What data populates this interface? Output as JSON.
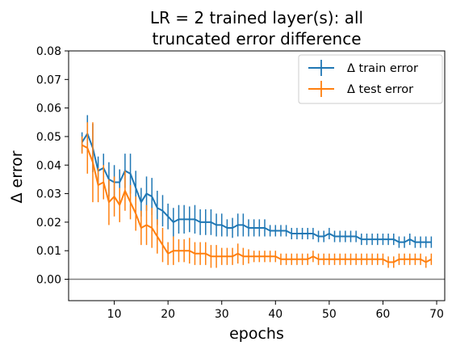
{
  "chart_data": {
    "type": "line",
    "title_lines": [
      "LR = 2 trained layer(s): all",
      "truncated error difference"
    ],
    "xlabel": "epochs",
    "ylabel": "Δ error",
    "xlim": [
      1.5,
      71.5
    ],
    "ylim": [
      -0.0075,
      0.08
    ],
    "xticks": [
      10,
      20,
      30,
      40,
      50,
      60,
      70
    ],
    "yticks": [
      0.0,
      0.01,
      0.02,
      0.03,
      0.04,
      0.05,
      0.06,
      0.07,
      0.08
    ],
    "ytick_labels": [
      "0.00",
      "0.01",
      "0.02",
      "0.03",
      "0.04",
      "0.05",
      "0.06",
      "0.07",
      "0.08"
    ],
    "reference_line": {
      "y": 0.0,
      "color": "#808080"
    },
    "legend_position": "top-right",
    "x": [
      4,
      5,
      6,
      7,
      8,
      9,
      10,
      11,
      12,
      13,
      14,
      15,
      16,
      17,
      18,
      19,
      20,
      21,
      22,
      23,
      24,
      25,
      26,
      27,
      28,
      29,
      30,
      31,
      32,
      33,
      34,
      35,
      36,
      37,
      38,
      39,
      40,
      41,
      42,
      43,
      44,
      45,
      46,
      47,
      48,
      49,
      50,
      51,
      52,
      53,
      54,
      55,
      56,
      57,
      58,
      59,
      60,
      61,
      62,
      63,
      64,
      65,
      66,
      67,
      68,
      69
    ],
    "series": [
      {
        "name": "Δ train error",
        "color": "#1f77b4",
        "values": [
          0.048,
          0.051,
          0.046,
          0.038,
          0.039,
          0.035,
          0.034,
          0.034,
          0.038,
          0.037,
          0.032,
          0.027,
          0.03,
          0.029,
          0.025,
          0.024,
          0.022,
          0.02,
          0.021,
          0.021,
          0.021,
          0.021,
          0.02,
          0.02,
          0.02,
          0.019,
          0.019,
          0.018,
          0.018,
          0.019,
          0.019,
          0.018,
          0.018,
          0.018,
          0.018,
          0.017,
          0.017,
          0.017,
          0.017,
          0.016,
          0.016,
          0.016,
          0.016,
          0.016,
          0.015,
          0.015,
          0.016,
          0.015,
          0.015,
          0.015,
          0.015,
          0.015,
          0.014,
          0.014,
          0.014,
          0.014,
          0.014,
          0.014,
          0.014,
          0.013,
          0.013,
          0.014,
          0.013,
          0.013,
          0.013,
          0.013
        ],
        "errors": [
          0.0035,
          0.0065,
          0.0085,
          0.005,
          0.005,
          0.006,
          0.006,
          0.0045,
          0.006,
          0.007,
          0.006,
          0.005,
          0.006,
          0.0065,
          0.006,
          0.0055,
          0.0045,
          0.005,
          0.005,
          0.005,
          0.0045,
          0.005,
          0.0045,
          0.0045,
          0.0045,
          0.004,
          0.004,
          0.003,
          0.0035,
          0.004,
          0.004,
          0.003,
          0.003,
          0.003,
          0.003,
          0.002,
          0.002,
          0.002,
          0.002,
          0.002,
          0.002,
          0.002,
          0.002,
          0.002,
          0.002,
          0.002,
          0.002,
          0.002,
          0.002,
          0.002,
          0.002,
          0.002,
          0.002,
          0.002,
          0.002,
          0.002,
          0.002,
          0.002,
          0.002,
          0.002,
          0.002,
          0.002,
          0.002,
          0.002,
          0.002,
          0.002
        ]
      },
      {
        "name": "Δ test error",
        "color": "#ff7f0e",
        "values": [
          0.047,
          0.046,
          0.041,
          0.033,
          0.034,
          0.027,
          0.029,
          0.026,
          0.031,
          0.027,
          0.023,
          0.018,
          0.019,
          0.018,
          0.015,
          0.012,
          0.009,
          0.01,
          0.01,
          0.01,
          0.01,
          0.009,
          0.009,
          0.009,
          0.008,
          0.008,
          0.008,
          0.008,
          0.008,
          0.009,
          0.008,
          0.008,
          0.008,
          0.008,
          0.008,
          0.008,
          0.008,
          0.007,
          0.007,
          0.007,
          0.007,
          0.007,
          0.007,
          0.008,
          0.007,
          0.007,
          0.007,
          0.007,
          0.007,
          0.007,
          0.007,
          0.007,
          0.007,
          0.007,
          0.007,
          0.007,
          0.007,
          0.006,
          0.006,
          0.007,
          0.007,
          0.007,
          0.007,
          0.007,
          0.006,
          0.007
        ],
        "errors": [
          0.003,
          0.009,
          0.014,
          0.006,
          0.006,
          0.008,
          0.007,
          0.006,
          0.007,
          0.006,
          0.006,
          0.006,
          0.007,
          0.007,
          0.006,
          0.006,
          0.004,
          0.005,
          0.004,
          0.004,
          0.0045,
          0.004,
          0.004,
          0.004,
          0.004,
          0.004,
          0.003,
          0.003,
          0.003,
          0.0035,
          0.003,
          0.0025,
          0.002,
          0.002,
          0.002,
          0.002,
          0.002,
          0.002,
          0.002,
          0.002,
          0.002,
          0.002,
          0.002,
          0.002,
          0.002,
          0.002,
          0.002,
          0.002,
          0.002,
          0.002,
          0.002,
          0.002,
          0.002,
          0.002,
          0.002,
          0.002,
          0.002,
          0.002,
          0.002,
          0.002,
          0.002,
          0.002,
          0.002,
          0.002,
          0.002,
          0.002
        ]
      }
    ]
  }
}
